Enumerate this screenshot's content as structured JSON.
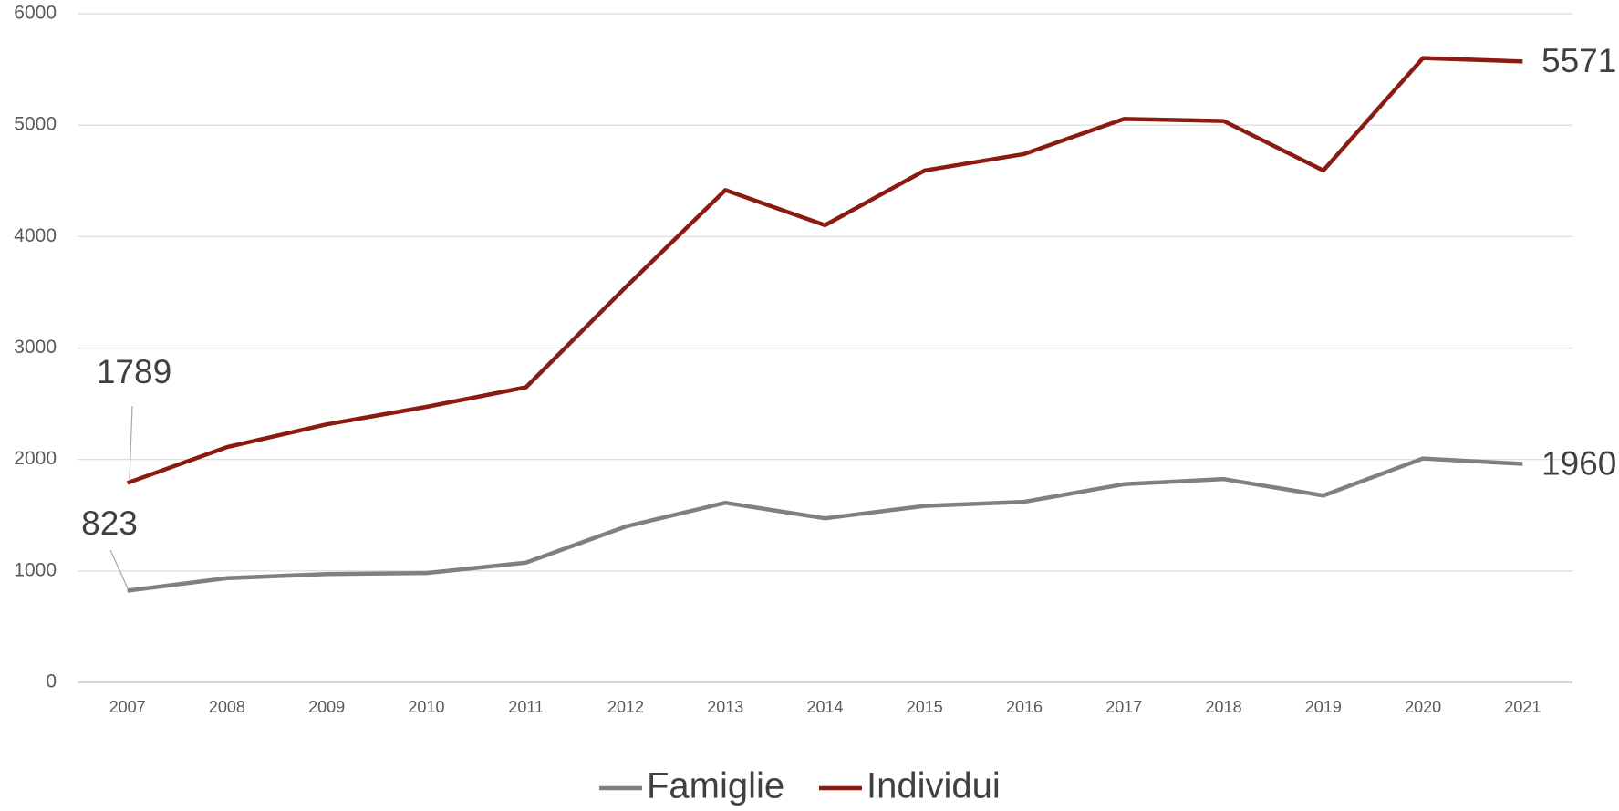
{
  "chart_data": {
    "type": "line",
    "categories": [
      "2007",
      "2008",
      "2009",
      "2010",
      "2011",
      "2012",
      "2013",
      "2014",
      "2015",
      "2016",
      "2017",
      "2018",
      "2019",
      "2020",
      "2021"
    ],
    "series": [
      {
        "name": "Famiglie",
        "color": "#808080",
        "values": [
          823,
          935,
          972,
          981,
          1074,
          1398,
          1611,
          1472,
          1583,
          1620,
          1778,
          1824,
          1676,
          2009,
          1960
        ]
      },
      {
        "name": "Individui",
        "color": "#8b1a10",
        "values": [
          1789,
          2111,
          2315,
          2472,
          2648,
          3546,
          4417,
          4102,
          4593,
          4741,
          5056,
          5037,
          4593,
          5602,
          5571
        ]
      }
    ],
    "ylim": [
      0,
      6000
    ],
    "yticks": [
      0,
      1000,
      2000,
      3000,
      4000,
      5000,
      6000
    ],
    "grid": true,
    "legend": "bottom"
  }
}
